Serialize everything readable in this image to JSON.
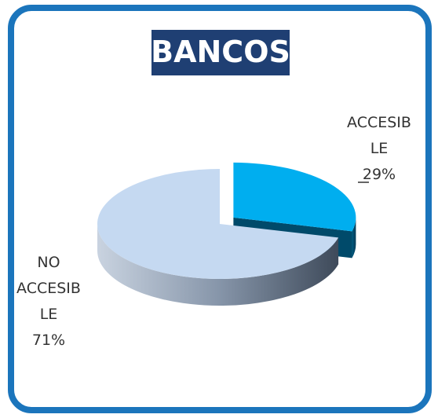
{
  "chart_data": {
    "type": "pie",
    "title": "BANCOS",
    "categories": [
      "ACCESIBLE",
      "NO ACCESIBLE"
    ],
    "values": [
      29,
      71
    ],
    "value_labels": [
      "29%",
      "71%"
    ],
    "colors": [
      "#00aeef",
      "#c5d9f1"
    ],
    "exploded": [
      true,
      false
    ]
  }
}
